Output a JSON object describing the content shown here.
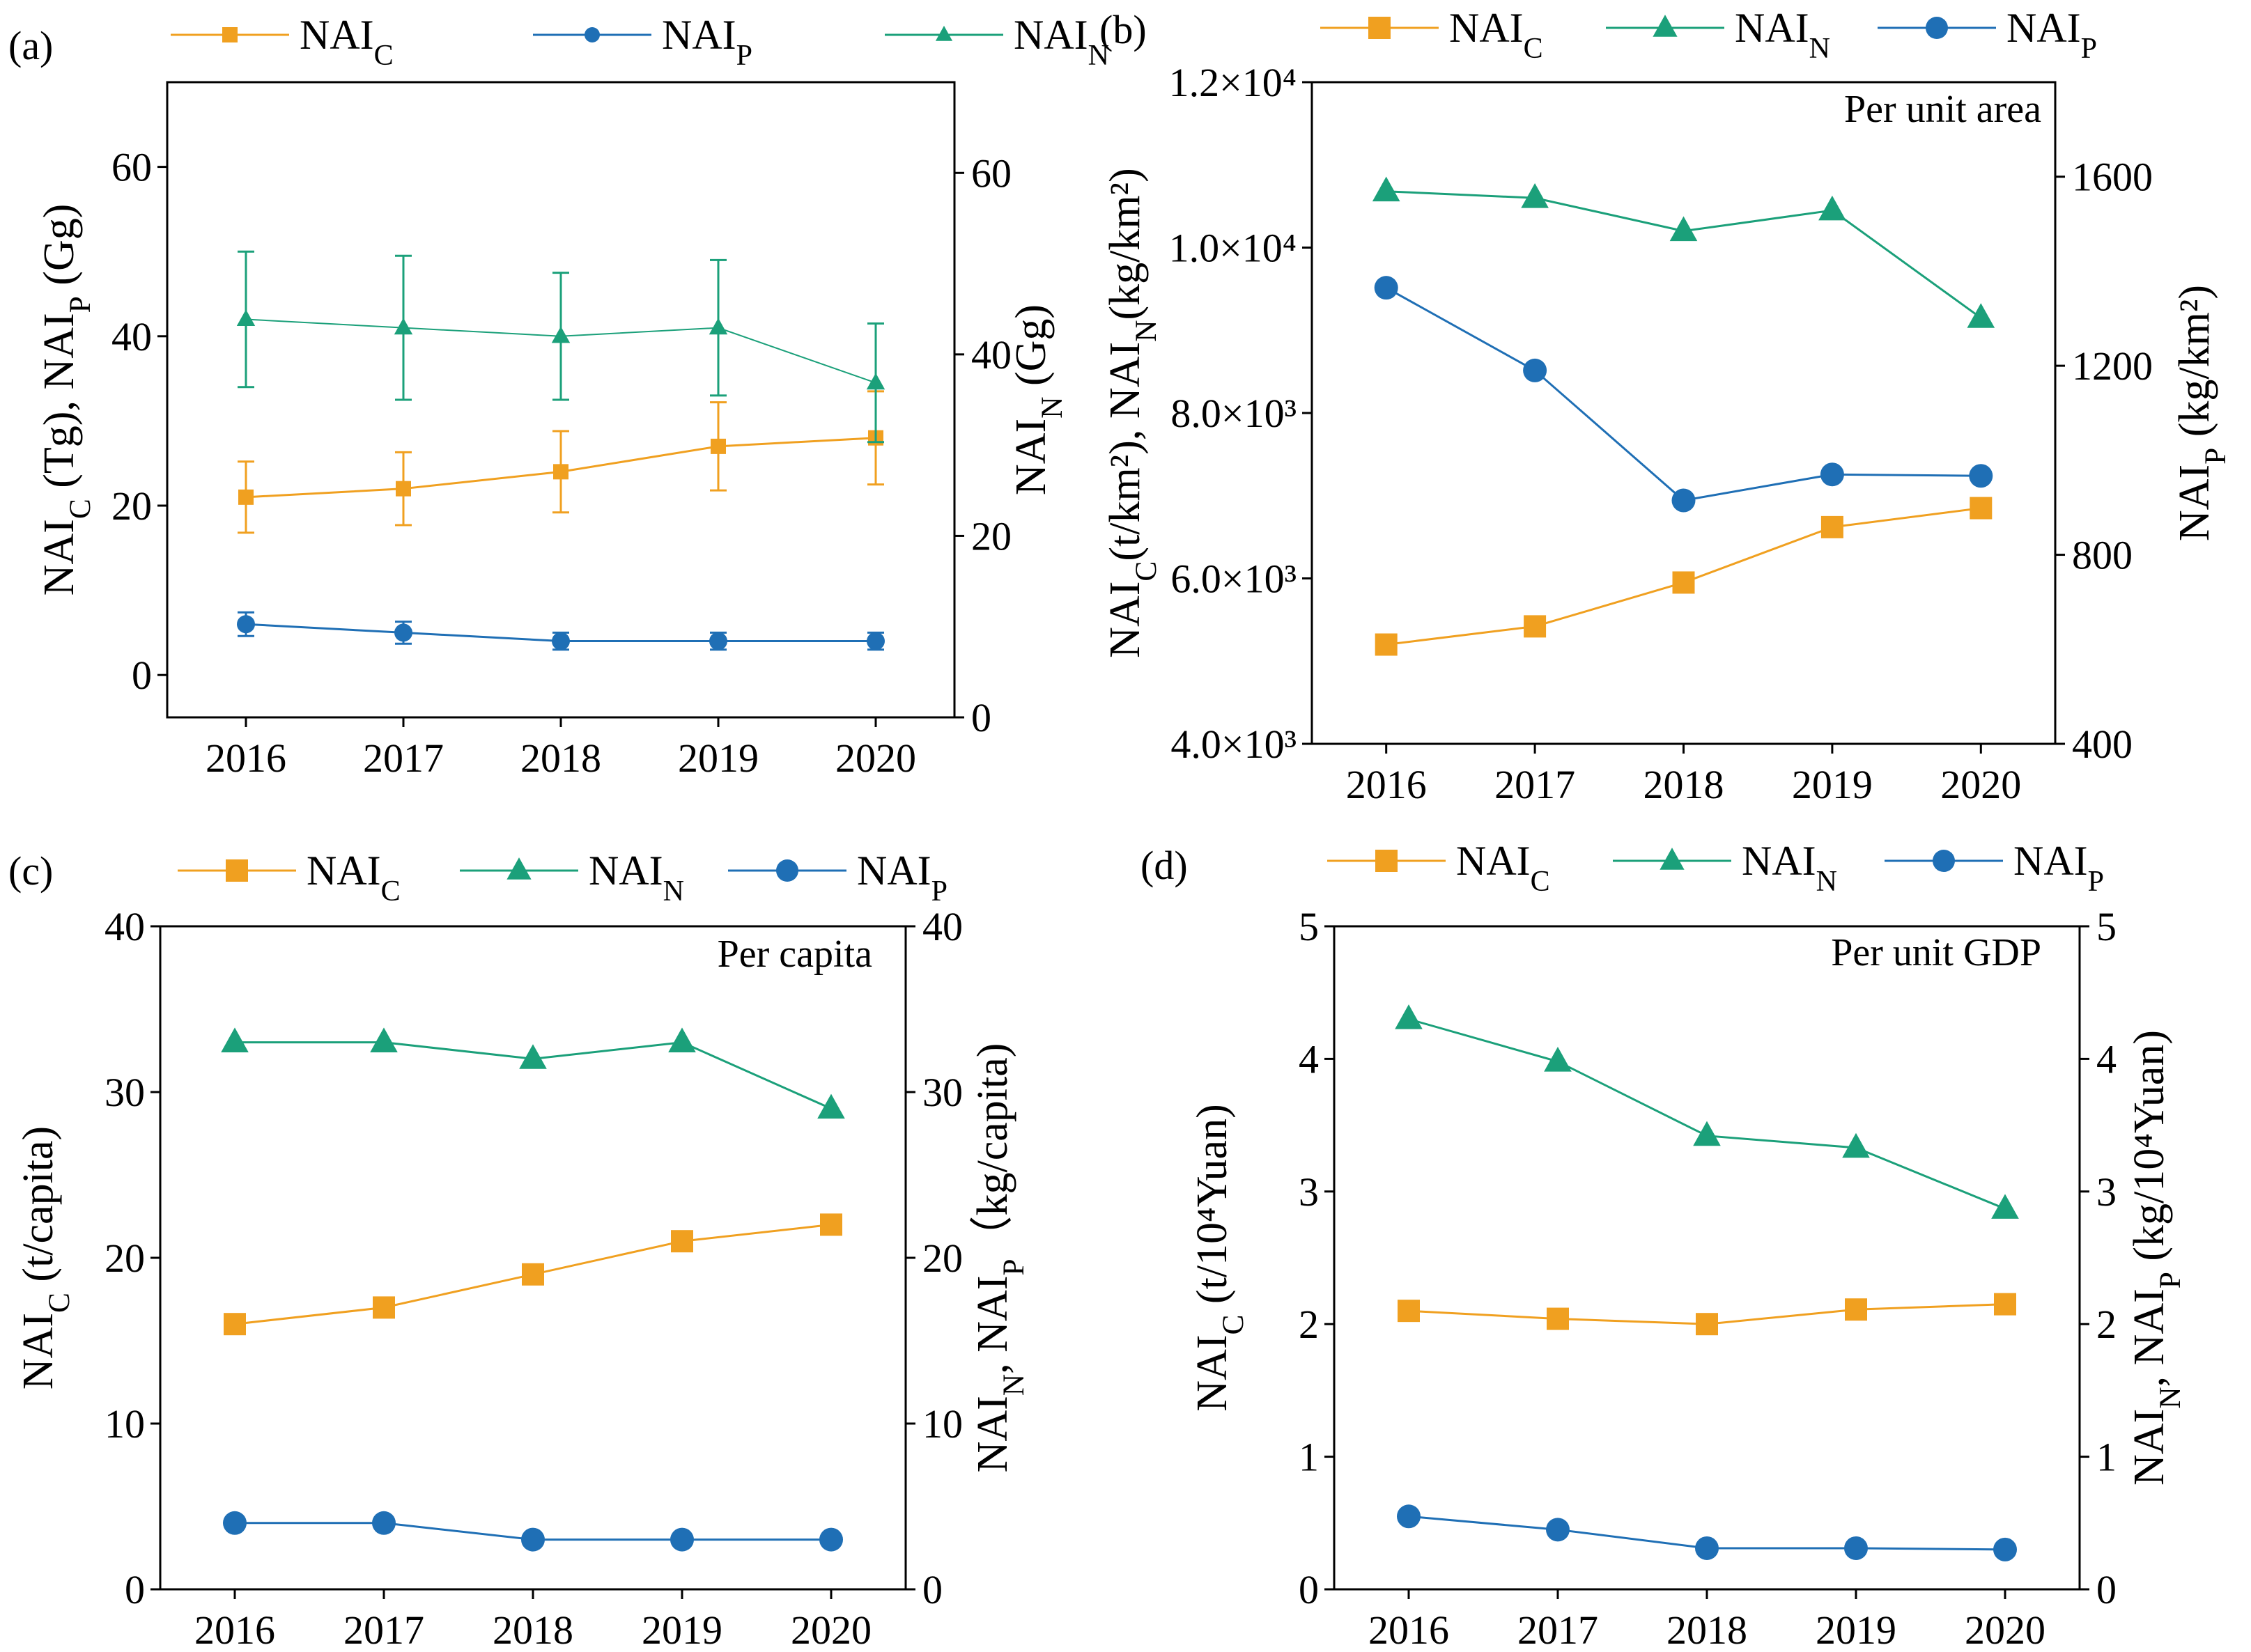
{
  "chart_data": [
    {
      "panel": "(a)",
      "type": "line",
      "categories": [
        "2016",
        "2017",
        "2018",
        "2019",
        "2020"
      ],
      "legend": [
        "NAI_C",
        "NAI_P",
        "NAI_N"
      ],
      "ylabel": "NAI_C (Tg), NAI_P (Gg)",
      "y2label": "NAI_N (Gg)",
      "ylim": [
        -5,
        70
      ],
      "y2lim": [
        0,
        70
      ],
      "yticks": [
        0,
        20,
        40,
        60
      ],
      "y2ticks": [
        0,
        20,
        40,
        60
      ],
      "series": [
        {
          "name": "NAI_C",
          "axis": "left",
          "color": "#F0A020",
          "marker": "square",
          "values": [
            21,
            22,
            24,
            27,
            28
          ],
          "errors": [
            4.2,
            4.3,
            4.8,
            5.2,
            5.5
          ]
        },
        {
          "name": "NAI_P",
          "axis": "left",
          "color": "#1F6FB5",
          "marker": "circle",
          "values": [
            6,
            5,
            4,
            4,
            4
          ],
          "errors": [
            1.4,
            1.3,
            1.0,
            1.0,
            1.0
          ]
        },
        {
          "name": "NAI_N",
          "axis": "left",
          "color": "#1BA07A",
          "marker": "triangle",
          "values": [
            42,
            41,
            40,
            41,
            34.5
          ],
          "errors": [
            8,
            8.5,
            7.5,
            8,
            7
          ]
        }
      ]
    },
    {
      "panel": "(b)",
      "type": "line",
      "annotation": "Per unit area",
      "categories": [
        "2016",
        "2017",
        "2018",
        "2019",
        "2020"
      ],
      "legend": [
        "NAI_C",
        "NAI_N",
        "NAI_P"
      ],
      "ylabel": "NAI_C(t/km²), NAI_N(kg/km²)",
      "y2label": "NAI_P (kg/km²)",
      "ylim": [
        4000,
        12000
      ],
      "y2lim": [
        400,
        1800
      ],
      "ytick_labels": [
        "4.0×10³",
        "6.0×10³",
        "8.0×10³",
        "1.0×10⁴",
        "1.2×10⁴"
      ],
      "yticks": [
        4000,
        6000,
        8000,
        10000,
        12000
      ],
      "y2ticks": [
        400,
        800,
        1200,
        1600
      ],
      "series": [
        {
          "name": "NAI_C",
          "axis": "left",
          "color": "#F0A020",
          "marker": "square",
          "values": [
            5200,
            5420,
            5950,
            6620,
            6850
          ]
        },
        {
          "name": "NAI_N",
          "axis": "left",
          "color": "#1BA07A",
          "marker": "triangle",
          "values": [
            10680,
            10600,
            10200,
            10450,
            9150
          ]
        },
        {
          "name": "NAI_P",
          "axis": "right",
          "color": "#1F6FB5",
          "marker": "circle",
          "values": [
            1365,
            1190,
            915,
            970,
            967
          ]
        }
      ]
    },
    {
      "panel": "(c)",
      "type": "line",
      "annotation": "Per capita",
      "categories": [
        "2016",
        "2017",
        "2018",
        "2019",
        "2020"
      ],
      "legend": [
        "NAI_C",
        "NAI_N",
        "NAI_P"
      ],
      "ylabel": "NAI_C (t/capita)",
      "y2label": "NAI_N, NAI_P（kg/capita)",
      "ylim": [
        0,
        40
      ],
      "y2lim": [
        0,
        40
      ],
      "yticks": [
        0,
        10,
        20,
        30,
        40
      ],
      "y2ticks": [
        0,
        10,
        20,
        30,
        40
      ],
      "series": [
        {
          "name": "NAI_C",
          "axis": "left",
          "color": "#F0A020",
          "marker": "square",
          "values": [
            16,
            17,
            19,
            21,
            22
          ]
        },
        {
          "name": "NAI_N",
          "axis": "right",
          "color": "#1BA07A",
          "marker": "triangle",
          "values": [
            33,
            33,
            32,
            33,
            29
          ]
        },
        {
          "name": "NAI_P",
          "axis": "right",
          "color": "#1F6FB5",
          "marker": "circle",
          "values": [
            4,
            4,
            3,
            3,
            3
          ]
        }
      ]
    },
    {
      "panel": "(d)",
      "type": "line",
      "annotation": "Per unit GDP",
      "categories": [
        "2016",
        "2017",
        "2018",
        "2019",
        "2020"
      ],
      "legend": [
        "NAI_C",
        "NAI_N",
        "NAI_P"
      ],
      "ylabel": "NAI_C (t/10⁴Yuan)",
      "y2label": "NAI_N, NAI_P (kg/10⁴Yuan)",
      "ylim": [
        0,
        5
      ],
      "y2lim": [
        0,
        5
      ],
      "yticks": [
        0,
        1,
        2,
        3,
        4,
        5
      ],
      "y2ticks": [
        0,
        1,
        2,
        3,
        4,
        5
      ],
      "series": [
        {
          "name": "NAI_C",
          "axis": "left",
          "color": "#F0A020",
          "marker": "square",
          "values": [
            2.1,
            2.04,
            2.0,
            2.11,
            2.15
          ]
        },
        {
          "name": "NAI_N",
          "axis": "right",
          "color": "#1BA07A",
          "marker": "triangle",
          "values": [
            4.3,
            3.98,
            3.42,
            3.33,
            2.87
          ]
        },
        {
          "name": "NAI_P",
          "axis": "right",
          "color": "#1F6FB5",
          "marker": "circle",
          "values": [
            0.55,
            0.45,
            0.31,
            0.31,
            0.3
          ]
        }
      ]
    }
  ]
}
